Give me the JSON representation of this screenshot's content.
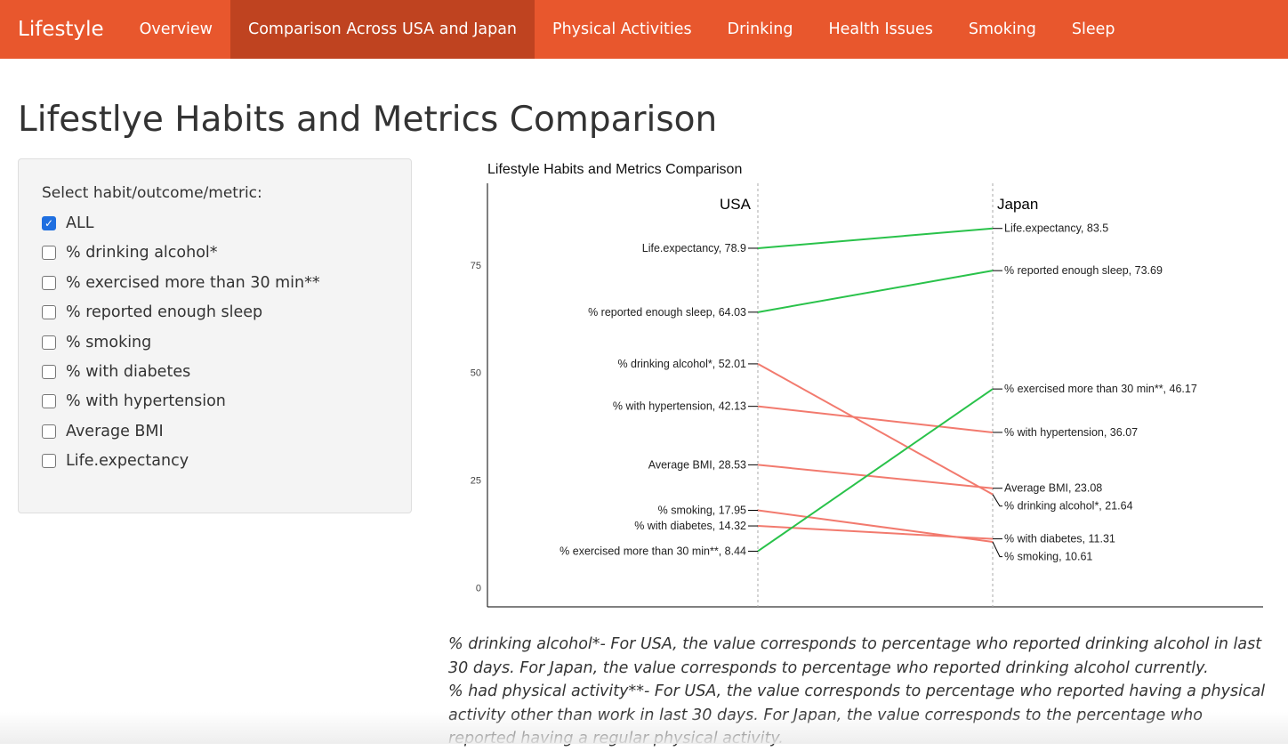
{
  "navbar": {
    "brand": "Lifestyle",
    "items": [
      {
        "label": "Overview",
        "active": false
      },
      {
        "label": "Comparison Across USA and Japan",
        "active": true
      },
      {
        "label": "Physical Activities",
        "active": false
      },
      {
        "label": "Drinking",
        "active": false
      },
      {
        "label": "Health Issues",
        "active": false
      },
      {
        "label": "Smoking",
        "active": false
      },
      {
        "label": "Sleep",
        "active": false
      }
    ],
    "color": "#e8572d",
    "active_color": "#bf4320"
  },
  "page_title": "Lifestlye Habits and Metrics Comparison",
  "sidebar": {
    "label": "Select habit/outcome/metric:",
    "options": [
      {
        "label": "ALL",
        "checked": true
      },
      {
        "label": "% drinking alcohol*",
        "checked": false
      },
      {
        "label": "% exercised more than 30 min**",
        "checked": false
      },
      {
        "label": "% reported enough sleep",
        "checked": false
      },
      {
        "label": "% smoking",
        "checked": false
      },
      {
        "label": "% with diabetes",
        "checked": false
      },
      {
        "label": "% with hypertension",
        "checked": false
      },
      {
        "label": "Average BMI",
        "checked": false
      },
      {
        "label": "Life.expectancy",
        "checked": false
      }
    ]
  },
  "chart_data": {
    "type": "line",
    "title": "Lifestyle Habits and Metrics Comparison",
    "x": [
      "USA",
      "Japan"
    ],
    "y_ticks": [
      0,
      25,
      50,
      75
    ],
    "ylim": [
      -4.5,
      94
    ],
    "colors": {
      "increase": "#29c24a",
      "decrease": "#f27a6e"
    },
    "series": [
      {
        "name": "Life.expectancy",
        "values": [
          78.9,
          83.5
        ],
        "usa_label": "Life.expectancy, 78.9",
        "japan_label": "Life.expectancy, 83.5"
      },
      {
        "name": "% reported enough sleep",
        "values": [
          64.03,
          73.69
        ],
        "usa_label": "% reported enough sleep, 64.03",
        "japan_label": "% reported enough sleep, 73.69"
      },
      {
        "name": "% drinking alcohol*",
        "values": [
          52.01,
          21.64
        ],
        "usa_label": "% drinking alcohol*, 52.01",
        "japan_label": "% drinking alcohol*, 21.64"
      },
      {
        "name": "% with hypertension",
        "values": [
          42.13,
          36.07
        ],
        "usa_label": "% with hypertension, 42.13",
        "japan_label": "% with hypertension, 36.07"
      },
      {
        "name": "Average BMI",
        "values": [
          28.53,
          23.08
        ],
        "usa_label": "Average BMI, 28.53",
        "japan_label": "Average BMI, 23.08"
      },
      {
        "name": "% smoking",
        "values": [
          17.95,
          10.61
        ],
        "usa_label": "% smoking, 17.95",
        "japan_label": "% smoking, 10.61"
      },
      {
        "name": "% with diabetes",
        "values": [
          14.32,
          11.31
        ],
        "usa_label": "% with diabetes, 14.32",
        "japan_label": "% with diabetes, 11.31"
      },
      {
        "name": "% exercised more than 30 min**",
        "values": [
          8.44,
          46.17
        ],
        "usa_label": "% exercised more than 30 min**, 8.44",
        "japan_label": "% exercised more than 30 min**, 46.17"
      }
    ]
  },
  "footnotes": {
    "note1": "% drinking alcohol*- For USA, the value corresponds to percentage who reported drinking alcohol in last 30 days. For Japan, the value corresponds to percentage who reported drinking alcohol currently.",
    "note2": "% had physical activity**- For USA, the value corresponds to percentage who reported having a physical activity other than work in last 30 days. For Japan, the value corresponds to the percentage who reported having a regular physical activity."
  }
}
